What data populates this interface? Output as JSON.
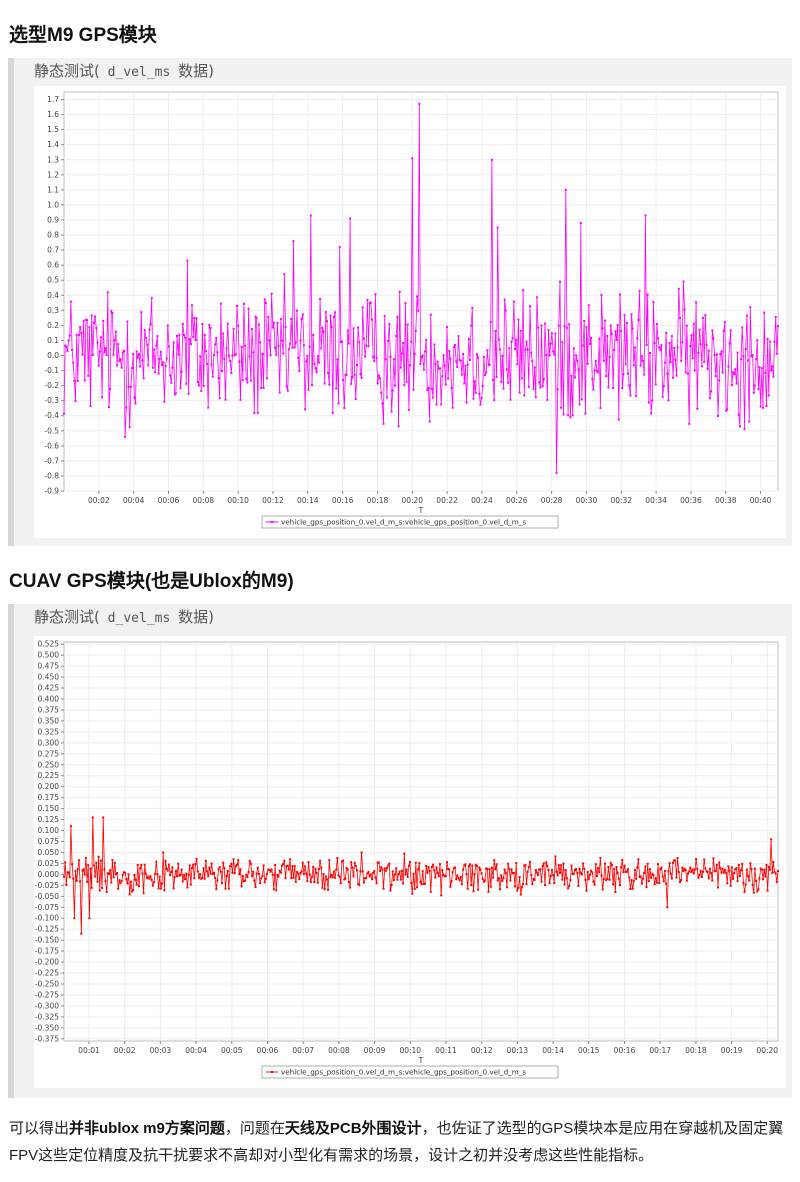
{
  "section1": {
    "heading": "选型M9 GPS模块"
  },
  "section2": {
    "heading": "CUAV GPS模块(也是Ublox的M9)"
  },
  "quote1": {
    "title_prefix": "静态测试(",
    "title_code": " d_vel_ms ",
    "title_suffix": "数据)"
  },
  "quote2": {
    "title_prefix": "静态测试(",
    "title_code": " d_vel_ms ",
    "title_suffix": "数据)"
  },
  "charts": [
    {
      "type": "line",
      "color": "#ff00ff",
      "xlabel": "T",
      "legend": "vehicle_gps_position_0.vel_d_m_s:vehicle_gps_position_0.vel_d_m_s",
      "legend_placement": "bottom-center",
      "grid": true,
      "ylim": [
        -0.9,
        1.75
      ],
      "y_ticks": [
        "1.7",
        "1.6",
        "1.5",
        "1.4",
        "1.3",
        "1.2",
        "1.1",
        "1.0",
        "0.9",
        "0.8",
        "0.7",
        "0.6",
        "0.5",
        "0.4",
        "0.3",
        "0.2",
        "0.1",
        "0.0",
        "-0.1",
        "-0.2",
        "-0.3",
        "-0.4",
        "-0.5",
        "-0.6",
        "-0.7",
        "-0.8",
        "-0.9"
      ],
      "x_ticks": [
        "00:02",
        "00:04",
        "00:06",
        "00:08",
        "00:10",
        "00:12",
        "00:14",
        "00:16",
        "00:18",
        "00:20",
        "00:22",
        "00:24",
        "00:26",
        "00:28",
        "00:30",
        "00:32",
        "00:34",
        "00:36",
        "00:38",
        "00:40"
      ],
      "x_range_s": [
        0,
        41
      ],
      "noise_amplitude": 0.3,
      "num_points": 620,
      "peaks": [
        {
          "t": 20.4,
          "v": 1.67
        },
        {
          "t": 20.0,
          "v": 1.31
        },
        {
          "t": 24.6,
          "v": 1.3
        },
        {
          "t": 28.8,
          "v": 1.1
        },
        {
          "t": 14.2,
          "v": 0.93
        },
        {
          "t": 16.4,
          "v": 0.91
        },
        {
          "t": 24.9,
          "v": 0.85
        },
        {
          "t": 33.4,
          "v": 0.93
        },
        {
          "t": 29.7,
          "v": 0.88
        },
        {
          "t": 15.8,
          "v": 0.72
        },
        {
          "t": 7.1,
          "v": 0.63
        },
        {
          "t": 13.2,
          "v": 0.76
        },
        {
          "t": 28.3,
          "v": -0.78
        },
        {
          "t": 3.5,
          "v": -0.54
        },
        {
          "t": 19.2,
          "v": -0.47
        }
      ]
    },
    {
      "type": "line",
      "color": "#ff0000",
      "xlabel": "T",
      "legend": "vehicle_gps_position_0.vel_d_m_s:vehicle_gps_position_0.vel_d_m_s",
      "legend_placement": "bottom-center",
      "grid": true,
      "ylim": [
        -0.38,
        0.53
      ],
      "y_ticks": [
        "0.525",
        "0.500",
        "0.475",
        "0.450",
        "0.425",
        "0.400",
        "0.375",
        "0.350",
        "0.325",
        "0.300",
        "0.275",
        "0.250",
        "0.225",
        "0.200",
        "0.175",
        "0.150",
        "0.125",
        "0.100",
        "0.075",
        "0.050",
        "0.025",
        "0.000",
        "-0.025",
        "-0.050",
        "-0.075",
        "-0.100",
        "-0.125",
        "-0.150",
        "-0.175",
        "-0.200",
        "-0.225",
        "-0.250",
        "-0.275",
        "-0.300",
        "-0.325",
        "-0.350",
        "-0.375"
      ],
      "x_ticks": [
        "00:01",
        "00:02",
        "00:03",
        "00:04",
        "00:05",
        "00:06",
        "00:07",
        "00:08",
        "00:09",
        "00:10",
        "00:11",
        "00:12",
        "00:13",
        "00:14",
        "00:15",
        "00:16",
        "00:17",
        "00:18",
        "00:19",
        "00:20"
      ],
      "x_range_s": [
        0.3,
        20.3
      ],
      "noise_amplitude": 0.028,
      "num_points": 620,
      "peaks": [
        {
          "t": 0.8,
          "v": -0.135
        },
        {
          "t": 1.1,
          "v": 0.13
        },
        {
          "t": 1.4,
          "v": 0.13
        },
        {
          "t": 0.5,
          "v": 0.11
        },
        {
          "t": 0.6,
          "v": -0.1
        },
        {
          "t": 1.0,
          "v": -0.1
        },
        {
          "t": 20.1,
          "v": 0.08
        },
        {
          "t": 17.2,
          "v": -0.075
        }
      ]
    }
  ],
  "paragraph": {
    "p1": "可以得出",
    "b1": "并非ublox m9方案问题",
    "p2": "，问题在",
    "b2": "天线及PCB外围设计",
    "p3": "，也佐证了选型的GPS模块本是应用在穿越机及固定翼FPV这些定位精度及抗干扰要求不高却对小型化有需求的场景，设计之初并没考虑这些性能指标。"
  }
}
